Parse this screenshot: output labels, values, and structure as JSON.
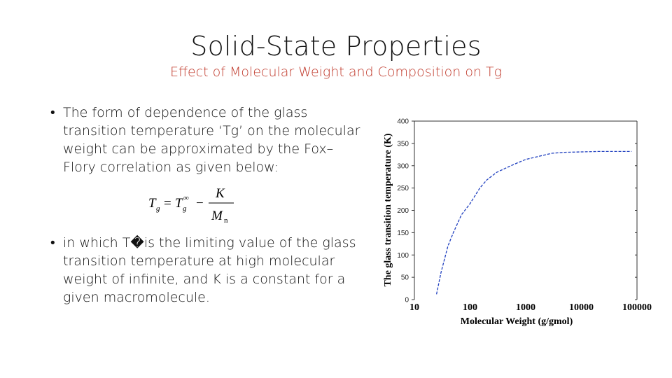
{
  "slide": {
    "title": "Solid-State Properties",
    "subtitle": "Effect of Molecular Weight and Composition on Tg",
    "bullets": [
      {
        "marker": "•",
        "text": "The form of dependence of the glass transition temperature ‘Tg’ on the molecular weight can be approximated by the Fox–Flory correlation as given below:"
      },
      {
        "marker": "•",
        "text": "in which T�is the limiting value of the glass transition temperature at high molecular weight of infinite, and K is a constant for a given macromolecule."
      }
    ],
    "formula": {
      "lhs": "T",
      "lhs_sub": "g",
      "eq": "=",
      "t_inf": "T",
      "t_inf_sub": "g",
      "t_inf_sup": "∞",
      "minus": "−",
      "numerator": "K",
      "denominator": "M",
      "denominator_sub": "n"
    }
  },
  "chart_data": {
    "type": "line",
    "xlabel": "Molecular Weight (g/gmol)",
    "ylabel": "The glass transition temperature (K)",
    "x_scale": "log",
    "xlim": [
      10,
      100000
    ],
    "ylim": [
      0,
      400
    ],
    "x_ticks": [
      "10",
      "100",
      "1000",
      "10000",
      "100000"
    ],
    "y_ticks": [
      "0",
      "50",
      "100",
      "150",
      "200",
      "250",
      "300",
      "350",
      "400"
    ],
    "line_color": "#1f3fbf",
    "line_style": "dashed",
    "series": [
      {
        "x": [
          25,
          30,
          40,
          50,
          70,
          100,
          150,
          200,
          300,
          500,
          700,
          1000,
          2000,
          3000,
          5000,
          10000,
          20000,
          50000,
          80000
        ],
        "y": [
          12,
          60,
          120,
          150,
          190,
          215,
          250,
          268,
          285,
          298,
          306,
          314,
          323,
          328,
          330,
          331,
          332,
          332,
          332
        ]
      }
    ]
  }
}
